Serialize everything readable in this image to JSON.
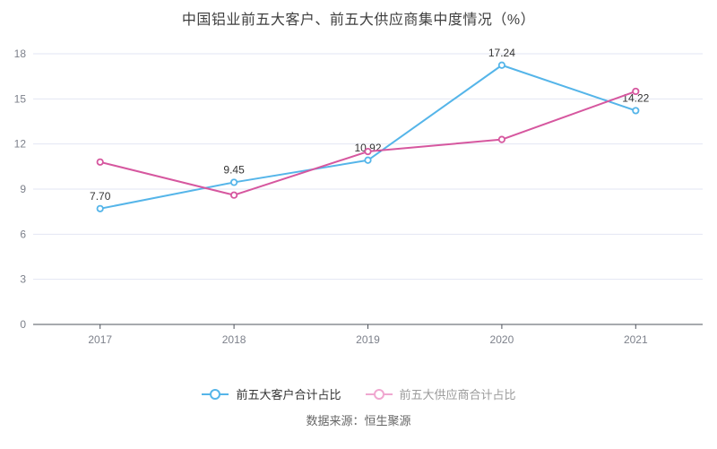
{
  "source": "数据来源：恒生聚源",
  "colors": {
    "customer": "#55b5e9",
    "supplier": "#d6579f",
    "supplier_legend": "#f0a7d0",
    "grid": "#e2e6f3",
    "axis": "#4f545d",
    "axis_label": "#7d818b",
    "value_label": "#333333",
    "title_text": "#3f3f3f",
    "legend_active_text": "#333333",
    "legend_muted_text": "#9b9b9b",
    "source_text": "#666666",
    "background": "#ffffff"
  },
  "chart_data": {
    "type": "line",
    "title": "中国铝业前五大客户、前五大供应商集中度情况（%）",
    "xlabel": "",
    "ylabel": "",
    "categories": [
      "2017",
      "2018",
      "2019",
      "2020",
      "2021"
    ],
    "series": [
      {
        "id": "customers",
        "name": "前五大客户合计占比",
        "values": [
          7.7,
          9.45,
          10.92,
          17.24,
          14.22
        ],
        "data_labels": [
          "7.70",
          "9.45",
          "10.92",
          "17.24",
          "14.22"
        ],
        "show_labels": true,
        "color_key": "customer"
      },
      {
        "id": "suppliers",
        "name": "前五大供应商合计占比",
        "values": [
          10.8,
          8.6,
          11.5,
          12.3,
          15.5
        ],
        "data_labels": [],
        "show_labels": false,
        "color_key": "supplier"
      }
    ],
    "ylim": [
      0,
      18
    ],
    "y_ticks": [
      0,
      3,
      6,
      9,
      12,
      15,
      18
    ],
    "grid": true,
    "legend_position": "bottom"
  }
}
